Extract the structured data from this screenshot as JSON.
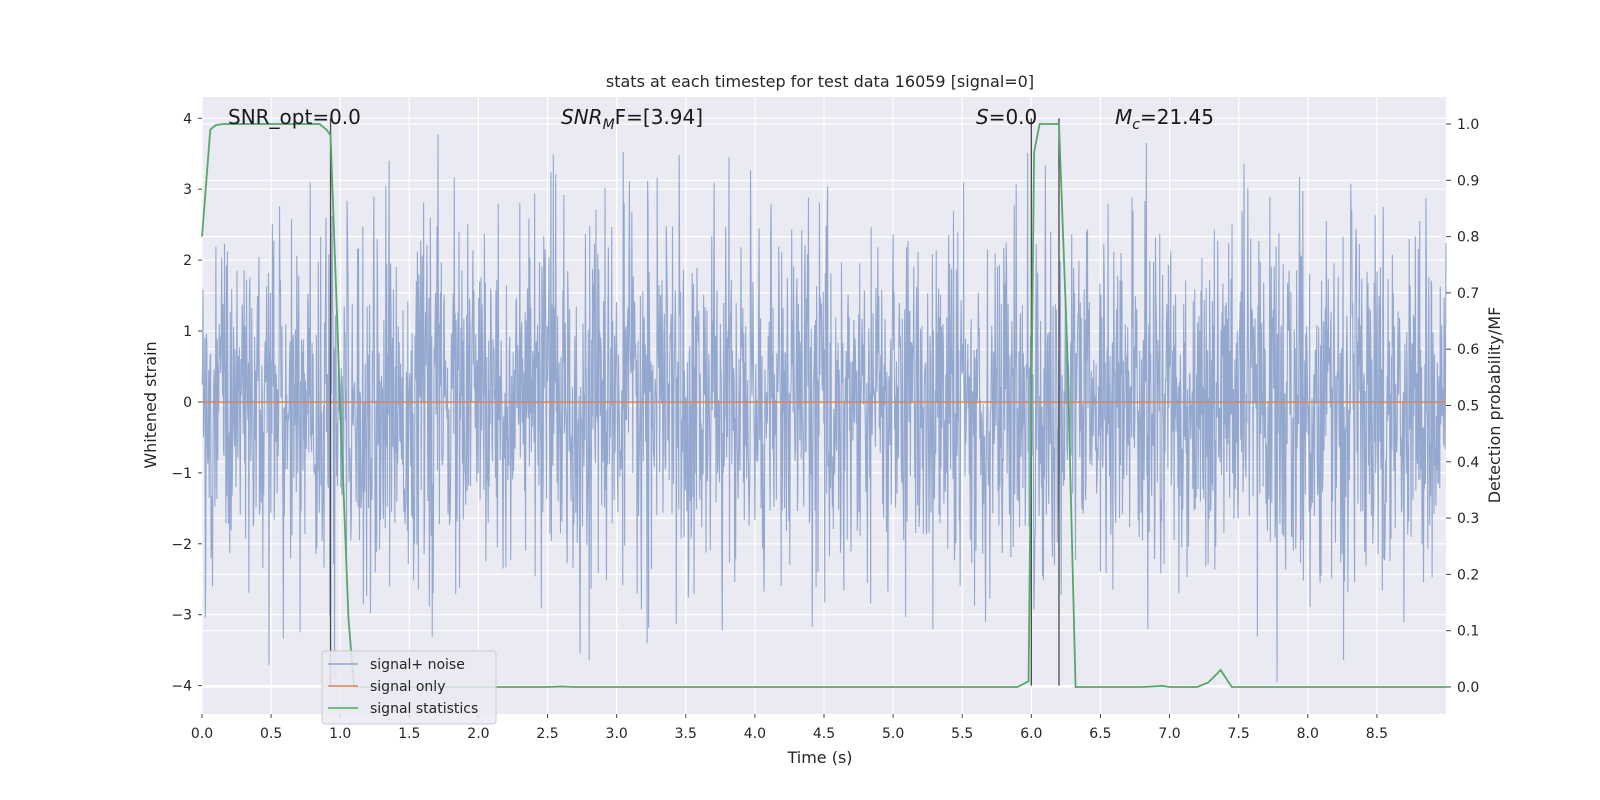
{
  "chart_data": {
    "type": "line",
    "title": "stats at each timestep for test data 16059 [signal=0]",
    "xlabel": "Time (s)",
    "ylabel": "Whitened strain",
    "y2label": "Detection probability/MF",
    "xlim": [
      0.0,
      9.0
    ],
    "ylim": [
      -4.4,
      4.3
    ],
    "y2lim": [
      -0.048,
      1.048
    ],
    "xticks": [
      "0.0",
      "0.5",
      "1.0",
      "1.5",
      "2.0",
      "2.5",
      "3.0",
      "3.5",
      "4.0",
      "4.5",
      "5.0",
      "5.5",
      "6.0",
      "6.5",
      "7.0",
      "7.5",
      "8.0",
      "8.5"
    ],
    "yticks": [
      "4",
      "3",
      "2",
      "1",
      "0",
      "−1",
      "−2",
      "−3",
      "−4"
    ],
    "y2ticks": [
      "1.0",
      "0.9",
      "0.8",
      "0.7",
      "0.6",
      "0.5",
      "0.4",
      "0.3",
      "0.2",
      "0.1",
      "0.0"
    ],
    "grid": true,
    "legend_position": "lower-left",
    "colors": {
      "noise": "#8fa4cc",
      "signal": "#dd8452",
      "stats": "#55a868",
      "vlines": "#4a4a4a",
      "plot_bg": "#eaeaf2",
      "grid": "#ffffff"
    },
    "annotations": {
      "snr_opt": "SNR_opt=0.0",
      "snr_mf_main": "SNR",
      "snr_mf_sub": "M",
      "snr_mf_rest": "F=[3.94]",
      "s_main": "S",
      "s_rest": "=0.0",
      "mc_main": "M",
      "mc_sub": "c",
      "mc_rest": "=21.45"
    },
    "series": [
      {
        "name": "signal+ noise",
        "kind": "noise",
        "note_values": "whitened strain noise fluctuating within approximately [-3.9, 3.9] around 0 over t=0..9 s"
      },
      {
        "name": "signal only",
        "x": [
          0.0,
          9.0
        ],
        "y": [
          0.0,
          0.0
        ]
      },
      {
        "name": "signal statistics",
        "axis": "y2",
        "x": [
          0.0,
          0.06,
          0.1,
          0.15,
          0.2,
          0.3,
          0.4,
          0.5,
          0.6,
          0.7,
          0.8,
          0.85,
          0.9,
          0.93,
          1.0,
          1.06,
          1.1,
          1.5,
          2.0,
          2.5,
          2.6,
          2.7,
          3.0,
          4.0,
          5.0,
          5.9,
          5.98,
          6.0,
          6.02,
          6.06,
          6.1,
          6.2,
          6.26,
          6.32,
          6.5,
          6.8,
          6.95,
          7.0,
          7.2,
          7.28,
          7.37,
          7.45,
          7.6,
          8.0,
          8.5,
          9.0
        ],
        "y": [
          0.8,
          0.99,
          0.998,
          1.0,
          1.0,
          1.0,
          1.0,
          1.0,
          1.0,
          1.0,
          1.0,
          1.0,
          0.99,
          0.98,
          0.5,
          0.12,
          0.0,
          0.0,
          0.0,
          0.0,
          0.001,
          0.0,
          0.0,
          0.0,
          0.0,
          0.0,
          0.01,
          0.5,
          0.95,
          1.0,
          1.0,
          1.0,
          0.6,
          0.0,
          0.0,
          0.0,
          0.002,
          0.0,
          0.0,
          0.008,
          0.03,
          0.0,
          0.0,
          0.0,
          0.0,
          0.0
        ]
      }
    ],
    "vlines_x": [
      0.93,
      6.0,
      6.2
    ]
  }
}
